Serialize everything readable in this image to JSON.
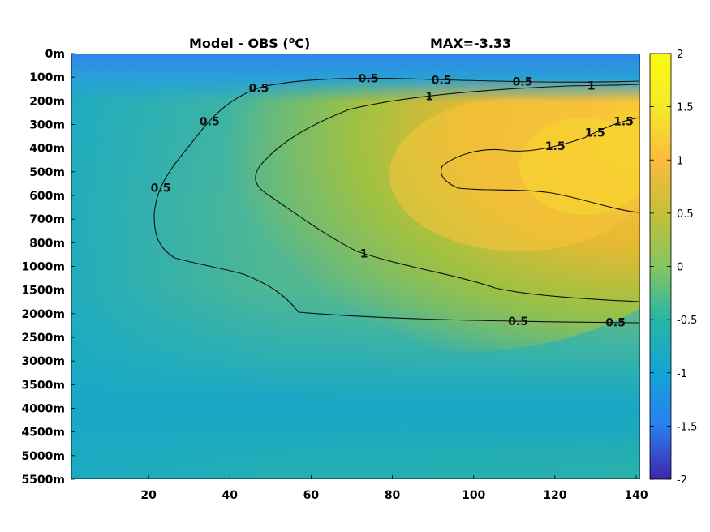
{
  "chart_data": {
    "type": "heatmap",
    "title_left": "Model - OBS (",
    "title_degree": "o",
    "title_unit": "C)",
    "title_right": "MAX=-3.33",
    "y_ticks": [
      "0m",
      "100m",
      "200m",
      "300m",
      "400m",
      "500m",
      "600m",
      "700m",
      "800m",
      "1000m",
      "1500m",
      "2000m",
      "2500m",
      "3000m",
      "3500m",
      "4000m",
      "4500m",
      "5000m",
      "5500m"
    ],
    "x_ticks": [
      20,
      40,
      60,
      80,
      100,
      120,
      140
    ],
    "xlim": [
      1,
      141
    ],
    "colorbar": {
      "range": [
        -2,
        2
      ],
      "ticks": [
        2,
        1.5,
        1,
        0.5,
        0,
        -0.5,
        -1,
        -1.5,
        -2
      ],
      "tick_labels": [
        "2",
        "1.5",
        "1",
        "0.5",
        "0",
        "-0.5",
        "-1",
        "-1.5",
        "-2"
      ],
      "colormap": "parula"
    },
    "contours": [
      {
        "level": 0.5,
        "label": "0.5",
        "labels_x": [
          23,
          35,
          47,
          74,
          92,
          112,
          135,
          111
        ]
      },
      {
        "level": 1,
        "label": "1",
        "labels_x": [
          73,
          89,
          129
        ]
      },
      {
        "level": 1.5,
        "label": "1.5",
        "labels_x": [
          120,
          130,
          137
        ]
      }
    ]
  }
}
